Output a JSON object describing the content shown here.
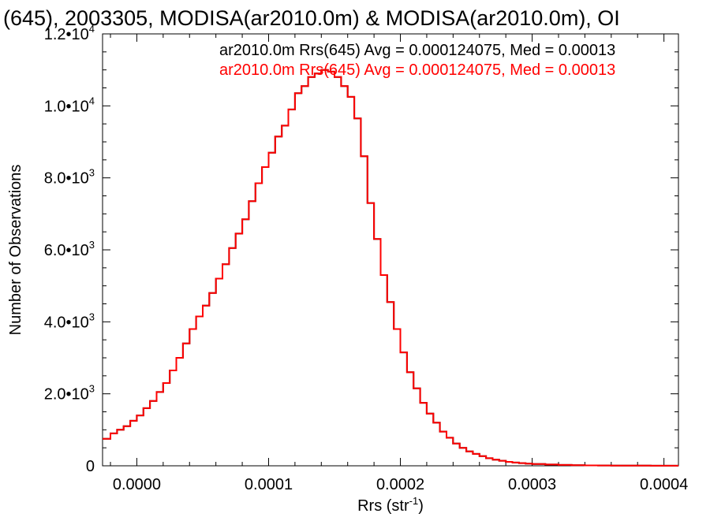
{
  "chart_data": {
    "type": "line",
    "title": "(645), 2003305, MODISA(ar2010.0m) & MODISA(ar2010.0m), OI",
    "xlabel": "Rrs (str",
    "xlabel_sup": "-1",
    "xlabel_close": ")",
    "ylabel": "Number of Observations",
    "xlim": [
      -2.6e-05,
      0.000411
    ],
    "ylim": [
      0,
      12000
    ],
    "x_ticks": [
      {
        "value": 0.0,
        "label": "0.0000"
      },
      {
        "value": 0.0001,
        "label": "0.0001"
      },
      {
        "value": 0.0002,
        "label": "0.0002"
      },
      {
        "value": 0.0003,
        "label": "0.0003"
      },
      {
        "value": 0.0004,
        "label": "0.0004"
      }
    ],
    "y_ticks": [
      {
        "value": 0,
        "base": "0",
        "exp": ""
      },
      {
        "value": 2000,
        "base": "2.0•10",
        "exp": "3"
      },
      {
        "value": 4000,
        "base": "4.0•10",
        "exp": "3"
      },
      {
        "value": 6000,
        "base": "6.0•10",
        "exp": "3"
      },
      {
        "value": 8000,
        "base": "8.0•10",
        "exp": "3"
      },
      {
        "value": 10000,
        "base": "1.0•10",
        "exp": "4"
      },
      {
        "value": 12000,
        "base": "1.2•10",
        "exp": "4"
      }
    ],
    "grid": false,
    "legend_position": "top-right",
    "series": [
      {
        "name": "ar2010.0m Rrs(645) Avg = 0.000124075, Med = 0.00013",
        "color": "#000000",
        "x": [
          -2.6e-05,
          -2e-05,
          -1.5e-05,
          -1e-05,
          -5e-06,
          0.0,
          5e-06,
          1e-05,
          1.5e-05,
          2e-05,
          2.5e-05,
          3e-05,
          3.5e-05,
          4e-05,
          4.5e-05,
          5e-05,
          5.5e-05,
          6e-05,
          6.5e-05,
          7e-05,
          7.5e-05,
          8e-05,
          8.5e-05,
          9e-05,
          9.5e-05,
          0.0001,
          0.000105,
          0.00011,
          0.000115,
          0.00012,
          0.000125,
          0.00013,
          0.000135,
          0.00014,
          0.000145,
          0.00015,
          0.000155,
          0.00016,
          0.000165,
          0.00017,
          0.000175,
          0.00018,
          0.000185,
          0.00019,
          0.000195,
          0.0002,
          0.000205,
          0.00021,
          0.000215,
          0.00022,
          0.000225,
          0.00023,
          0.000235,
          0.00024,
          0.000245,
          0.00025,
          0.000255,
          0.00026,
          0.000265,
          0.00027,
          0.000275,
          0.00028,
          0.000285,
          0.00029,
          0.000295,
          0.0003,
          0.00031,
          0.00032,
          0.00033,
          0.00034,
          0.00035,
          0.00036,
          0.00037,
          0.00038,
          0.00039,
          0.0004,
          0.000411
        ],
        "y": [
          750,
          900,
          1000,
          1100,
          1250,
          1400,
          1600,
          1800,
          2050,
          2300,
          2650,
          3000,
          3400,
          3800,
          4150,
          4450,
          4800,
          5200,
          5600,
          6050,
          6450,
          6850,
          7350,
          7850,
          8300,
          8700,
          9150,
          9450,
          9900,
          10350,
          10550,
          10800,
          10900,
          11000,
          10950,
          10800,
          10550,
          10250,
          9650,
          8600,
          7300,
          6300,
          5300,
          4550,
          3800,
          3150,
          2600,
          2150,
          1750,
          1450,
          1200,
          950,
          780,
          620,
          500,
          400,
          330,
          270,
          210,
          170,
          140,
          110,
          90,
          75,
          60,
          50,
          35,
          25,
          18,
          12,
          8,
          6,
          5,
          4,
          3,
          2,
          2
        ]
      },
      {
        "name": "ar2010.0m Rrs(645) Avg = 0.000124075, Med = 0.00013",
        "color": "#ff0000",
        "x": [
          -2.6e-05,
          -2e-05,
          -1.5e-05,
          -1e-05,
          -5e-06,
          0.0,
          5e-06,
          1e-05,
          1.5e-05,
          2e-05,
          2.5e-05,
          3e-05,
          3.5e-05,
          4e-05,
          4.5e-05,
          5e-05,
          5.5e-05,
          6e-05,
          6.5e-05,
          7e-05,
          7.5e-05,
          8e-05,
          8.5e-05,
          9e-05,
          9.5e-05,
          0.0001,
          0.000105,
          0.00011,
          0.000115,
          0.00012,
          0.000125,
          0.00013,
          0.000135,
          0.00014,
          0.000145,
          0.00015,
          0.000155,
          0.00016,
          0.000165,
          0.00017,
          0.000175,
          0.00018,
          0.000185,
          0.00019,
          0.000195,
          0.0002,
          0.000205,
          0.00021,
          0.000215,
          0.00022,
          0.000225,
          0.00023,
          0.000235,
          0.00024,
          0.000245,
          0.00025,
          0.000255,
          0.00026,
          0.000265,
          0.00027,
          0.000275,
          0.00028,
          0.000285,
          0.00029,
          0.000295,
          0.0003,
          0.00031,
          0.00032,
          0.00033,
          0.00034,
          0.00035,
          0.00036,
          0.00037,
          0.00038,
          0.00039,
          0.0004,
          0.000411
        ],
        "y": [
          750,
          900,
          1000,
          1100,
          1250,
          1400,
          1600,
          1800,
          2050,
          2300,
          2650,
          3000,
          3400,
          3800,
          4150,
          4450,
          4800,
          5200,
          5600,
          6050,
          6450,
          6850,
          7350,
          7850,
          8300,
          8700,
          9150,
          9450,
          9900,
          10350,
          10550,
          10800,
          10900,
          11000,
          10950,
          10800,
          10550,
          10250,
          9650,
          8600,
          7300,
          6300,
          5300,
          4550,
          3800,
          3150,
          2600,
          2150,
          1750,
          1450,
          1200,
          950,
          780,
          620,
          500,
          400,
          330,
          270,
          210,
          170,
          140,
          110,
          90,
          75,
          60,
          50,
          35,
          25,
          18,
          12,
          8,
          6,
          5,
          4,
          3,
          2,
          2
        ]
      }
    ]
  }
}
